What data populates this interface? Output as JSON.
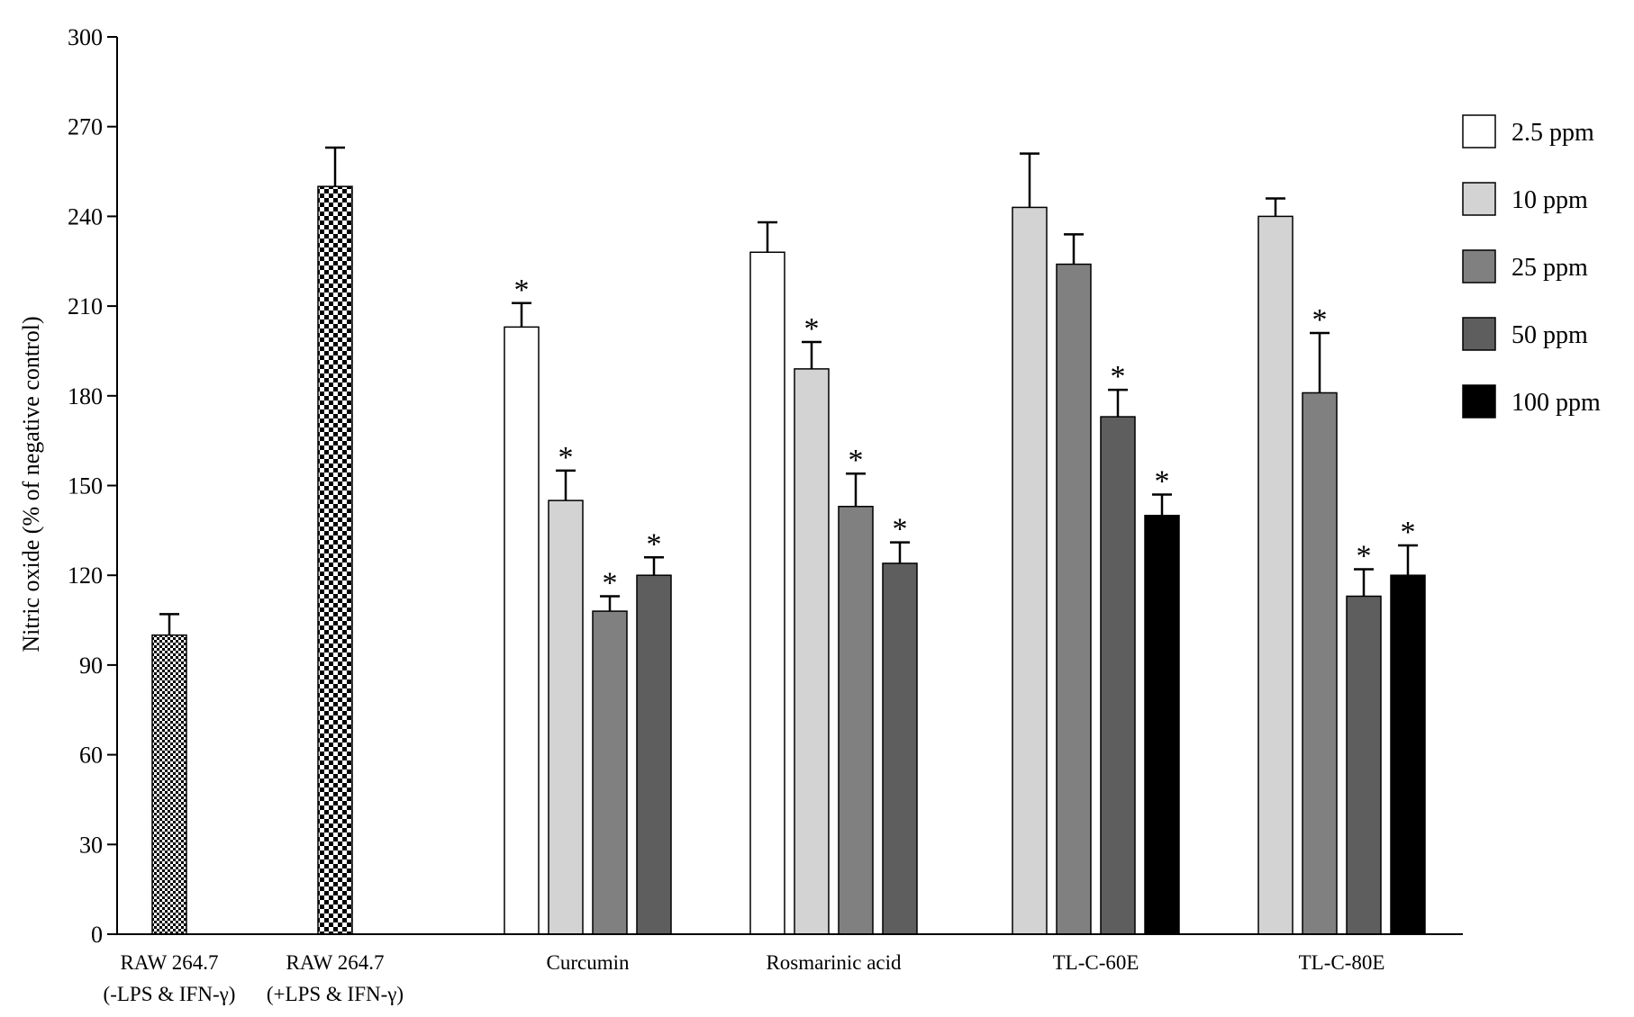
{
  "chart_data": {
    "type": "bar",
    "title": "",
    "xlabel": "",
    "ylabel": "Nitric oxide (% of negative control)",
    "ylim": [
      0,
      300
    ],
    "yticks": [
      0,
      30,
      60,
      90,
      120,
      150,
      180,
      210,
      240,
      270,
      300
    ],
    "grid": false,
    "legend_position": "right",
    "legend": [
      {
        "key": "p2_5",
        "label": "2.5 ppm",
        "color": "#ffffff"
      },
      {
        "key": "p10",
        "label": "10 ppm",
        "color": "#d3d3d3"
      },
      {
        "key": "p25",
        "label": "25 ppm",
        "color": "#808080"
      },
      {
        "key": "p50",
        "label": "50 ppm",
        "color": "#5e5e5e"
      },
      {
        "key": "p100",
        "label": "100 ppm",
        "color": "#000000"
      }
    ],
    "control_patterns": {
      "fine": "fine-checker",
      "coarse": "coarse-checker"
    },
    "groups": [
      {
        "line1": "RAW 264.7",
        "line2": "(-LPS & IFN-γ)",
        "bars": [
          {
            "fill": "fine",
            "value": 100,
            "error": 7,
            "sig": false
          }
        ]
      },
      {
        "line1": "RAW 264.7",
        "line2": "(+LPS & IFN-γ)",
        "bars": [
          {
            "fill": "coarse",
            "value": 250,
            "error": 13,
            "sig": false
          }
        ]
      },
      {
        "line1": "Curcumin",
        "line2": "",
        "bars": [
          {
            "fill": "p2_5",
            "value": 203,
            "error": 8,
            "sig": true
          },
          {
            "fill": "p10",
            "value": 145,
            "error": 10,
            "sig": true
          },
          {
            "fill": "p25",
            "value": 108,
            "error": 5,
            "sig": true
          },
          {
            "fill": "p50",
            "value": 120,
            "error": 6,
            "sig": true
          }
        ]
      },
      {
        "line1": "Rosmarinic acid",
        "line2": "",
        "bars": [
          {
            "fill": "p2_5",
            "value": 228,
            "error": 10,
            "sig": false
          },
          {
            "fill": "p10",
            "value": 189,
            "error": 9,
            "sig": true
          },
          {
            "fill": "p25",
            "value": 143,
            "error": 11,
            "sig": true
          },
          {
            "fill": "p50",
            "value": 124,
            "error": 7,
            "sig": true
          }
        ]
      },
      {
        "line1": "TL-C-60E",
        "line2": "",
        "bars": [
          {
            "fill": "p10",
            "value": 243,
            "error": 18,
            "sig": false
          },
          {
            "fill": "p25",
            "value": 224,
            "error": 10,
            "sig": false
          },
          {
            "fill": "p50",
            "value": 173,
            "error": 9,
            "sig": true
          },
          {
            "fill": "p100",
            "value": 140,
            "error": 7,
            "sig": true
          }
        ]
      },
      {
        "line1": "TL-C-80E",
        "line2": "",
        "bars": [
          {
            "fill": "p10",
            "value": 240,
            "error": 6,
            "sig": false
          },
          {
            "fill": "p25",
            "value": 181,
            "error": 20,
            "sig": true
          },
          {
            "fill": "p50",
            "value": 113,
            "error": 9,
            "sig": true
          },
          {
            "fill": "p100",
            "value": 120,
            "error": 10,
            "sig": true
          }
        ]
      }
    ],
    "significance_marker": "*"
  }
}
